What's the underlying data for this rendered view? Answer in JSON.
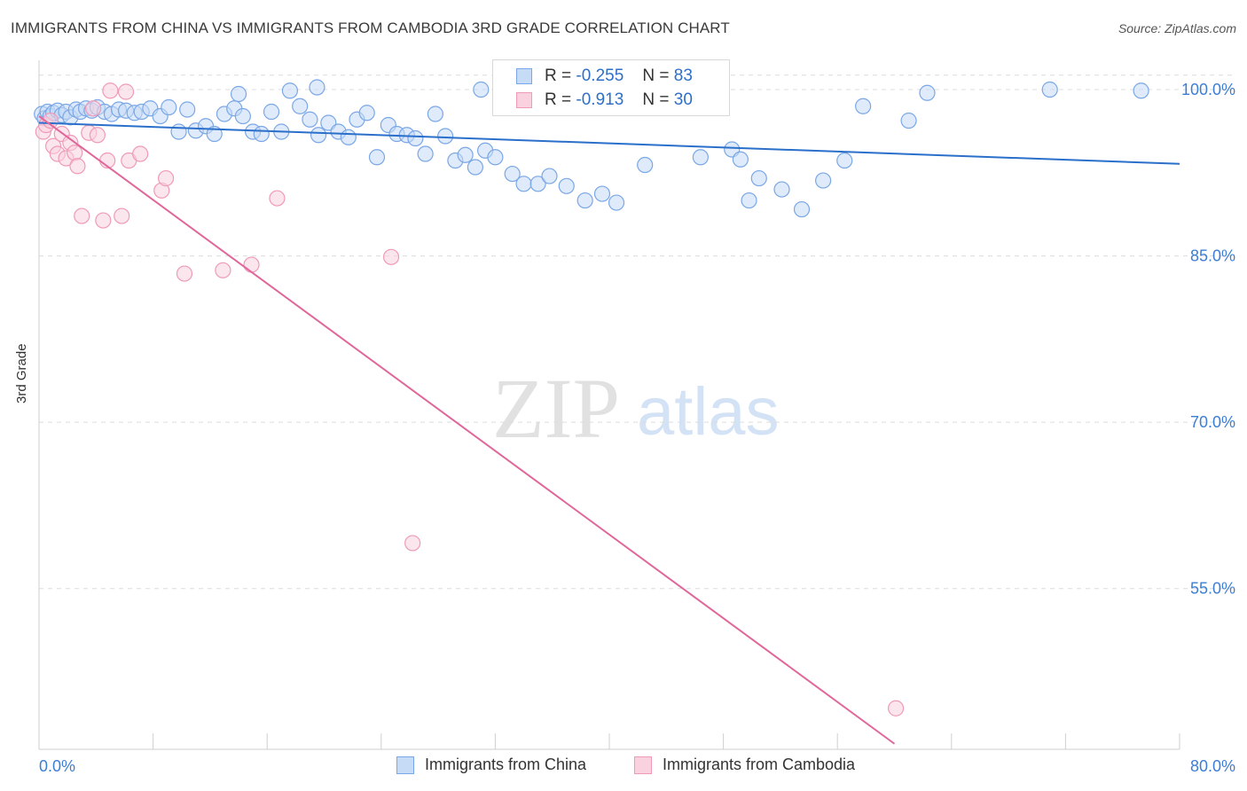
{
  "chart_data": {
    "type": "scatter",
    "title": "IMMIGRANTS FROM CHINA VS IMMIGRANTS FROM CAMBODIA 3RD GRADE CORRELATION CHART",
    "source": "Source: ZipAtlas.com",
    "ylabel": "3rd Grade",
    "xlabel": "",
    "xlim": [
      0,
      80
    ],
    "ylim": [
      40.5,
      102
    ],
    "x_tick_labels": [
      "0.0%",
      "80.0%"
    ],
    "y_ticks": [
      55,
      70,
      85,
      100
    ],
    "y_tick_labels": [
      "55.0%",
      "70.0%",
      "85.0%",
      "100.0%"
    ],
    "grid": true,
    "watermark": {
      "part1": "ZIP",
      "part2": "atlas"
    },
    "legend": [
      {
        "r_label": "R =",
        "r_value": "-0.255",
        "n_label": "N =",
        "n_value": "83"
      },
      {
        "r_label": "R =",
        "r_value": "-0.913",
        "n_label": "N =",
        "n_value": "30"
      }
    ],
    "series": [
      {
        "name": "Immigrants from China",
        "color": "#7aa7e6",
        "fill": "#c5dbf6",
        "line_color": "#2a6fca",
        "trend": {
          "x0": 0.0,
          "y0": 97.0,
          "x1": 80.0,
          "y1": 93.3
        },
        "points": [
          [
            0.2,
            97.8
          ],
          [
            0.4,
            97.4
          ],
          [
            0.6,
            98.0
          ],
          [
            0.8,
            97.6
          ],
          [
            1.0,
            97.9
          ],
          [
            1.3,
            98.1
          ],
          [
            1.6,
            97.7
          ],
          [
            1.9,
            98.0
          ],
          [
            2.2,
            97.5
          ],
          [
            2.6,
            98.2
          ],
          [
            2.9,
            98.0
          ],
          [
            3.3,
            98.3
          ],
          [
            3.7,
            98.1
          ],
          [
            4.1,
            98.4
          ],
          [
            4.6,
            98.0
          ],
          [
            5.1,
            97.8
          ],
          [
            5.6,
            98.2
          ],
          [
            6.1,
            98.1
          ],
          [
            6.7,
            97.9
          ],
          [
            7.2,
            98.0
          ],
          [
            7.8,
            98.3
          ],
          [
            8.5,
            97.6
          ],
          [
            9.1,
            98.4
          ],
          [
            9.8,
            96.2
          ],
          [
            10.4,
            98.2
          ],
          [
            11.0,
            96.3
          ],
          [
            11.7,
            96.7
          ],
          [
            12.3,
            96.0
          ],
          [
            13.0,
            97.8
          ],
          [
            13.7,
            98.3
          ],
          [
            14.3,
            97.6
          ],
          [
            15.0,
            96.2
          ],
          [
            15.6,
            96.0
          ],
          [
            16.3,
            98.0
          ],
          [
            17.0,
            96.2
          ],
          [
            17.6,
            99.9
          ],
          [
            18.3,
            98.5
          ],
          [
            19.0,
            97.3
          ],
          [
            19.6,
            95.9
          ],
          [
            20.3,
            97.0
          ],
          [
            21.0,
            96.2
          ],
          [
            21.7,
            95.7
          ],
          [
            22.3,
            97.3
          ],
          [
            23.0,
            97.9
          ],
          [
            23.7,
            93.9
          ],
          [
            24.5,
            96.8
          ],
          [
            25.1,
            96.0
          ],
          [
            25.8,
            95.9
          ],
          [
            26.4,
            95.6
          ],
          [
            27.1,
            94.2
          ],
          [
            27.8,
            97.8
          ],
          [
            28.5,
            95.8
          ],
          [
            29.2,
            93.6
          ],
          [
            29.9,
            94.1
          ],
          [
            30.6,
            93.0
          ],
          [
            31.3,
            94.5
          ],
          [
            32.0,
            93.9
          ],
          [
            33.2,
            92.4
          ],
          [
            34.0,
            91.5
          ],
          [
            35.0,
            91.5
          ],
          [
            35.8,
            92.2
          ],
          [
            37.0,
            91.3
          ],
          [
            38.3,
            90.0
          ],
          [
            39.5,
            90.6
          ],
          [
            40.5,
            89.8
          ],
          [
            42.5,
            93.2
          ],
          [
            46.4,
            93.9
          ],
          [
            48.6,
            94.6
          ],
          [
            49.2,
            93.7
          ],
          [
            49.8,
            90.0
          ],
          [
            50.5,
            92.0
          ],
          [
            52.1,
            91.0
          ],
          [
            53.5,
            89.2
          ],
          [
            55.0,
            91.8
          ],
          [
            56.5,
            93.6
          ],
          [
            57.8,
            98.5
          ],
          [
            61.0,
            97.2
          ],
          [
            62.3,
            99.7
          ],
          [
            70.9,
            100.0
          ],
          [
            77.3,
            99.9
          ],
          [
            31.0,
            100.0
          ],
          [
            19.5,
            100.2
          ],
          [
            14.0,
            99.6
          ]
        ]
      },
      {
        "name": "Immigrants from Cambodia",
        "color": "#ef9ab8",
        "fill": "#f9d1df",
        "line_color": "#e0679a",
        "trend": {
          "x0": 0.0,
          "y0": 97.6,
          "x1": 60.0,
          "y1": 41.0
        },
        "points": [
          [
            0.3,
            96.2
          ],
          [
            0.5,
            96.8
          ],
          [
            0.8,
            97.2
          ],
          [
            1.0,
            94.9
          ],
          [
            1.3,
            94.2
          ],
          [
            1.6,
            96.0
          ],
          [
            1.9,
            93.8
          ],
          [
            2.2,
            95.2
          ],
          [
            2.5,
            94.3
          ],
          [
            2.7,
            93.1
          ],
          [
            3.0,
            88.6
          ],
          [
            3.5,
            96.1
          ],
          [
            3.8,
            98.3
          ],
          [
            4.1,
            95.9
          ],
          [
            4.5,
            88.2
          ],
          [
            4.8,
            93.6
          ],
          [
            5.0,
            99.9
          ],
          [
            5.8,
            88.6
          ],
          [
            6.1,
            99.8
          ],
          [
            6.3,
            93.6
          ],
          [
            7.1,
            94.2
          ],
          [
            8.6,
            90.9
          ],
          [
            8.9,
            92.0
          ],
          [
            10.2,
            83.4
          ],
          [
            12.9,
            83.7
          ],
          [
            14.9,
            84.2
          ],
          [
            16.7,
            90.2
          ],
          [
            24.7,
            84.9
          ],
          [
            26.2,
            59.1
          ],
          [
            60.1,
            44.2
          ]
        ]
      }
    ]
  }
}
